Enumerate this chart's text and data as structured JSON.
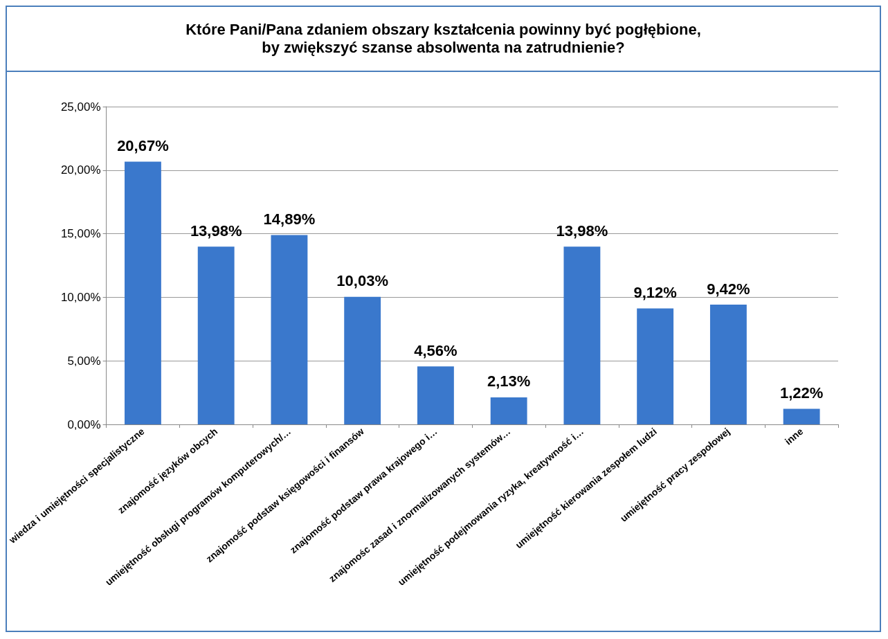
{
  "chart_data": {
    "type": "bar",
    "title": "Które Pani/Pana zdaniem obszary kształcenia powinny być pogłębione,\nby zwiększyć szanse absolwenta na zatrudnienie?",
    "categories": [
      "wiedza i umiejętności specjalistyczne",
      "znajomość języków obcych",
      "umiejętność obsługi programów komputerowych/…",
      "znajomość podstaw księgowości i finansów",
      "znajomość podstaw prawa krajowego i…",
      "znajomośc zasad i znormalizowanych systemów…",
      "umiejętność podejmowania ryzyka, kreatywność i…",
      "umiejętność kierowania zespołem ludzi",
      "umiejętność pracy zespołowej",
      "inne"
    ],
    "values": [
      20.67,
      13.98,
      14.89,
      10.03,
      4.56,
      2.13,
      13.98,
      9.12,
      9.42,
      1.22
    ],
    "value_labels": [
      "20,67%",
      "13,98%",
      "14,89%",
      "10,03%",
      "4,56%",
      "2,13%",
      "13,98%",
      "9,12%",
      "9,42%",
      "1,22%"
    ],
    "color": "#3a78cc",
    "ylim": [
      0,
      25
    ],
    "yticks": [
      {
        "value": 0,
        "label": "0,00%"
      },
      {
        "value": 5,
        "label": "5,00%"
      },
      {
        "value": 10,
        "label": "10,00%"
      },
      {
        "value": 15,
        "label": "15,00%"
      },
      {
        "value": 20,
        "label": "20,00%"
      },
      {
        "value": 25,
        "label": "25,00%"
      }
    ],
    "grid": "y"
  }
}
